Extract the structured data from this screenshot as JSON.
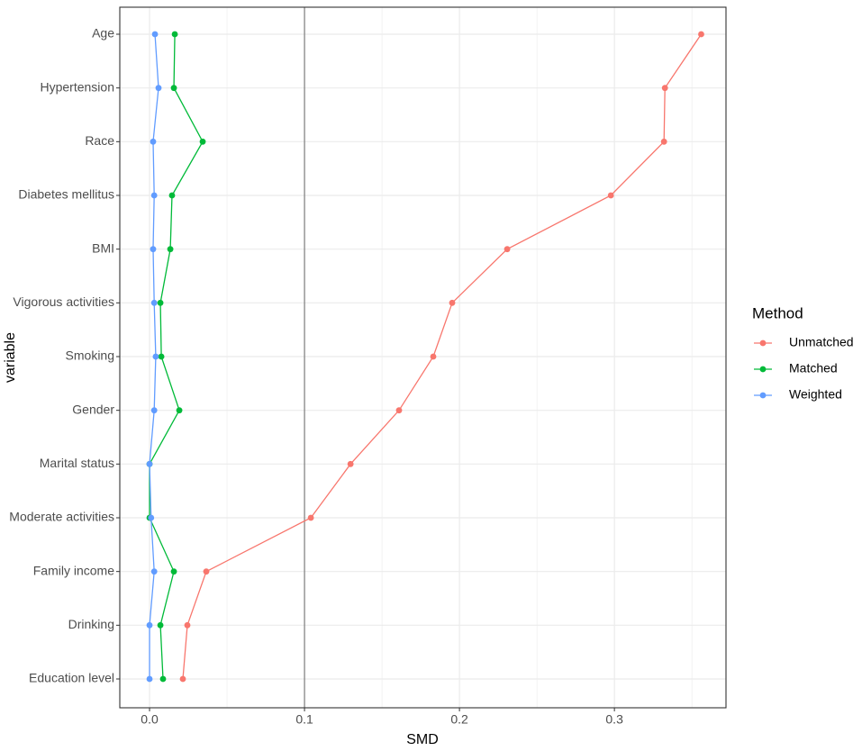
{
  "chart_data": {
    "type": "line",
    "x_label": "SMD",
    "y_label": "variable",
    "categories": [
      "Age",
      "Hypertension",
      "Race",
      "Diabetes mellitus",
      "BMI",
      "Vigorous activities",
      "Smoking",
      "Gender",
      "Marital status",
      "Moderate activities",
      "Family income",
      "Drinking",
      "Education level"
    ],
    "series": [
      {
        "name": "Unmatched",
        "color": "#F8766D",
        "values": [
          0.356,
          0.3326,
          0.332,
          0.2977,
          0.2308,
          0.1953,
          0.1831,
          0.161,
          0.1297,
          0.1041,
          0.0366,
          0.0244,
          0.0215
        ]
      },
      {
        "name": "Matched",
        "color": "#00BA38",
        "values": [
          0.0163,
          0.0157,
          0.0343,
          0.0145,
          0.0134,
          0.007,
          0.0076,
          0.0192,
          0.0,
          0.0,
          0.0157,
          0.007,
          0.0087
        ]
      },
      {
        "name": "Weighted",
        "color": "#619CFF",
        "values": [
          0.0035,
          0.0058,
          0.0023,
          0.003,
          0.0023,
          0.003,
          0.004,
          0.003,
          0.0,
          0.001,
          0.003,
          0.0,
          0.0
        ]
      }
    ],
    "legend_title": "Method",
    "legend": "right",
    "xlim": [
      -0.0192,
      0.372
    ],
    "xticks": [
      {
        "value": 0,
        "label": "0.0"
      },
      0.1,
      0.2,
      0.3
    ],
    "x_minor_grid": [
      0.05,
      0.15,
      0.25,
      0.35
    ],
    "vline": 0.1,
    "grid": true
  }
}
